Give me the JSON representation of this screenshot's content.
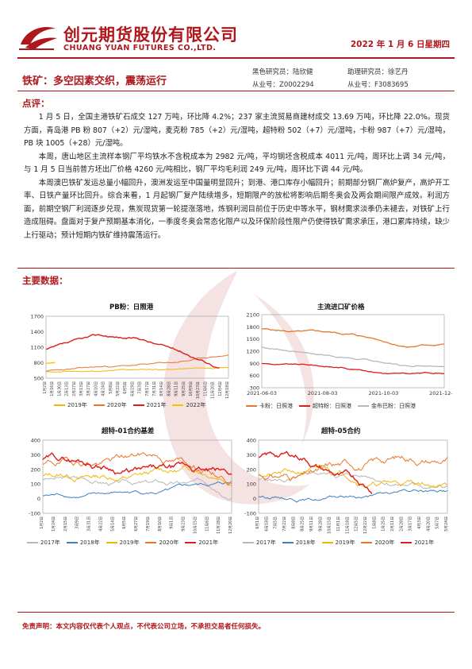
{
  "header": {
    "company_cn": "创元期货股份有限公司",
    "company_en": "CHUANG YUAN FUTURES CO.,LTD.",
    "date": "2022 年 1 月 6 日星期四"
  },
  "report": {
    "title": "铁矿：多空因素交织，震荡运行",
    "researcher_label": "黑色研究员：陆欣健",
    "assistant_label": "助理研究员：徐艺丹",
    "cert1": "从业号：Z0002294",
    "cert2": "从业号：F3083695"
  },
  "comment": {
    "heading": "点评：",
    "paragraphs": [
      "1 月 5 日，全国主港铁矿石成交 127 万吨，环比降 4.2%；237 家主流贸易商建材成交 13.69 万吨，环比降 22.0%。现货方面，青岛港 PB 粉 807（+2）元/湿吨，麦克粉 785（+2）元/湿吨，超特粉 502（+7）元/湿吨，卡粉 987（+7）元/湿吨，PB 块 1005（+28）元/湿吨。",
      "本周，唐山地区主流样本钢厂平均铁水不含税成本为 2982 元/吨，平均钢坯含税成本 4011 元/吨，周环比上调 34 元/吨，与 1 月 5 日当前普方坯出厂价格 4260 元/吨相比，钢厂平均毛利润 249 元/吨，周环比下调 44 元/吨。",
      "本周澳巴铁矿发运总量小幅回升，澳洲发运至中国量明显回升；到港、港口库存小幅回升；前期部分钢厂高炉复产，高炉开工率、日铁产量环比回升。综合来看，1 月起钢厂复产陆续增多，短期限产的放松将影响后期冬奥会及两会期间限产成效。利润方面，前期空钢厂利润逐步兑现，焦炭现货第一轮提涨落地，炼钢利润目前位于历史中等水平，钢材需求淡季仍未褪去，对铁矿上行造成阻碍。盘面对于复产预期基本消化，一季度冬奥会常态化限产以及环保阶段性限产仍使得铁矿需求承压，港口累库持续，缺少上行驱动；预计短期内铁矿维持震荡运行。"
    ]
  },
  "data_section": {
    "heading": "主要数据："
  },
  "charts": {
    "c1": {
      "title": "PB粉：日照港",
      "y_ticks": [
        "1700",
        "1400",
        "1100",
        "800",
        "500"
      ],
      "x_ticks": [
        "1月2日",
        "1月16日",
        "1月30日",
        "2月13日",
        "2月27日",
        "3月13日",
        "3月27日",
        "4月10日",
        "4月24日",
        "5月8日",
        "5月22日",
        "6月5日",
        "6月19日",
        "7月3日",
        "7月17日",
        "7月31日",
        "8月14日",
        "8月28日",
        "9月11日",
        "9月25日",
        "10月9日",
        "10月23日",
        "11月6日",
        "11月20日",
        "12月4日",
        "12月18日"
      ],
      "legend": [
        "2019年",
        "2020年",
        "2021年",
        "2022年"
      ],
      "colors": [
        "#f2b705",
        "#e8762c",
        "#e01b1b",
        "#f5c400"
      ]
    },
    "c2": {
      "title": "主流进口矿价格",
      "y_ticks": [
        "2100",
        "1800",
        "1500",
        "1200",
        "900",
        "600",
        "300"
      ],
      "x_ticks": [
        "2021-06-03",
        "2021-08-03",
        "2021-10-03",
        "2021-12-03"
      ],
      "legend": [
        "卡粉：日照港",
        "超特粉：日照港",
        "金布巴粉：日照港"
      ],
      "colors": [
        "#e8762c",
        "#e01b1b",
        "#b8b8b8"
      ]
    },
    "c3": {
      "title": "超特-01合约基差",
      "y_ticks": [
        "400",
        "300",
        "200",
        "100",
        "0",
        "-100"
      ],
      "x_ticks": [
        "1月2日",
        "1月24日",
        "2月15日",
        "3月9日",
        "3月31日",
        "4月22日",
        "5月14日",
        "6月5日",
        "6月27日",
        "7月19日",
        "8月10日",
        "9月1日",
        "9月23日",
        "10月15日",
        "11月6日",
        "11月28日",
        "12月20日"
      ],
      "legend": [
        "2017年",
        "2018年",
        "2019年",
        "2020年",
        "2021年"
      ],
      "colors": [
        "#b8b8b8",
        "#3e7fc1",
        "#f2b705",
        "#e8762c",
        "#e01b1b"
      ]
    },
    "c4": {
      "title": "超特-05合约",
      "y_ticks": [
        "400",
        "300",
        "200",
        "100",
        "0",
        "-100"
      ],
      "x_ticks": [
        "6月1日",
        "6月18日",
        "7月5日",
        "7月22日",
        "8月8日",
        "8月25日",
        "9月11日",
        "9月28日",
        "10月15日",
        "11月1日",
        "11月18日",
        "12月5日",
        "12月22日",
        "1月8日",
        "1月25日",
        "2月11日",
        "2月28日",
        "3月17日",
        "4月3日",
        "4月20日",
        "5月7日",
        "5月24日"
      ],
      "legend": [
        "2017年",
        "2018年",
        "2019年",
        "2020年",
        "2021年"
      ],
      "colors": [
        "#b8b8b8",
        "#3e7fc1",
        "#f2b705",
        "#e8762c",
        "#e01b1b"
      ]
    }
  },
  "footer": {
    "disclaimer": "免责声明：本文内容仅代表个人观点，不代表公司立场，不承担交易者任何损失。"
  }
}
